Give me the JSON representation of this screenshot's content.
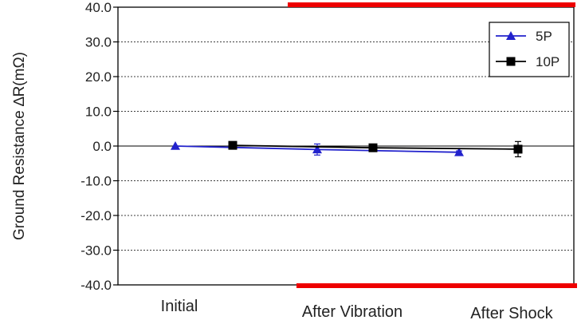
{
  "chart_data": {
    "type": "line",
    "ylabel": "Ground Resistance ∆R(mΩ)",
    "xlabel": "",
    "title": "",
    "ylim": [
      -40,
      40
    ],
    "y_ticks": [
      "40.0",
      "30.0",
      "20.0",
      "10.0",
      "0.0",
      "-10.0",
      "-20.0",
      "-30.0",
      "-40.0"
    ],
    "y_tick_values": [
      40,
      30,
      20,
      10,
      0,
      -10,
      -20,
      -30,
      -40
    ],
    "categories": [
      "Initial",
      "After Vibration",
      "After Shock"
    ],
    "grid": true,
    "legend_position": "top-right",
    "limit_lines": {
      "upper": 40,
      "lower": -40,
      "color": "#ee0000"
    },
    "series": [
      {
        "name": "5P",
        "color": "#2222cc",
        "marker": "triangle",
        "values": [
          0.0,
          -1.0,
          -1.8
        ],
        "error": [
          0.0,
          1.6,
          0.4
        ]
      },
      {
        "name": "10P",
        "color": "#000000",
        "marker": "square",
        "values": [
          0.2,
          -0.5,
          -0.9
        ],
        "error": [
          0.0,
          0.3,
          2.2
        ]
      }
    ]
  }
}
